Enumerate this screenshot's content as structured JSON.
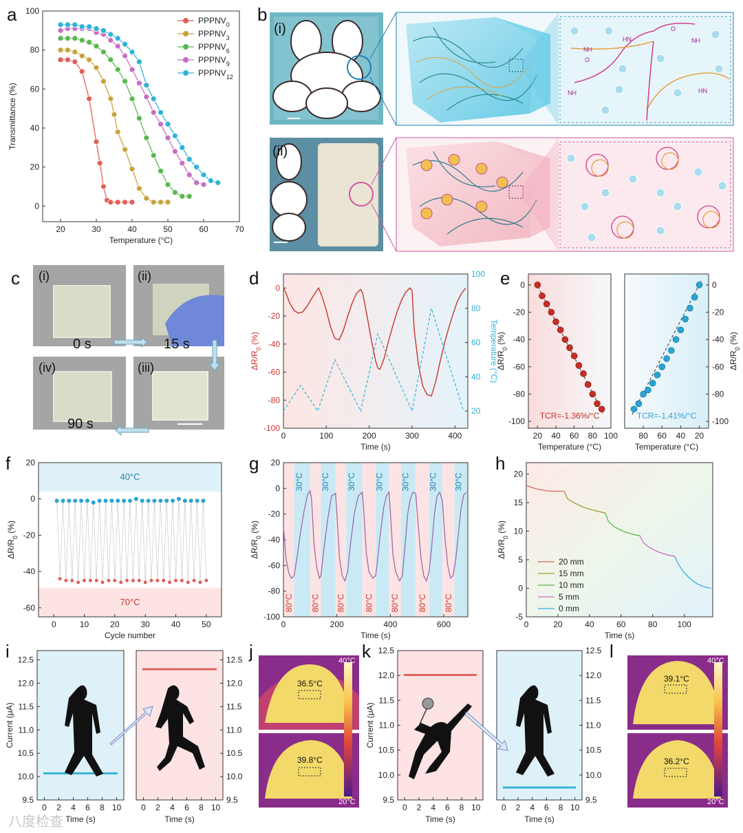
{
  "panel_labels": {
    "a": "a",
    "b": "b",
    "c": "c",
    "d": "d",
    "e": "e",
    "f": "f",
    "g": "g",
    "h": "h",
    "i": "i",
    "j": "j",
    "k": "k",
    "l": "l"
  },
  "colors": {
    "red": "#e0605a",
    "olive": "#c9a33a",
    "green": "#58b84f",
    "purple": "#c66fc3",
    "cyan": "#2fb2d8",
    "darkred": "#c8342c",
    "pinkbg": "#fde3e3",
    "bluebg": "#dff1f8"
  },
  "panel_b": {
    "label_i": "(i)",
    "label_ii": "(ii)",
    "hbond_nh": "NH",
    "hbond_hn": "HN",
    "hbond_o": "O"
  },
  "panel_c": {
    "labels": [
      "(i)",
      "(ii)",
      "(iii)",
      "(iv)"
    ],
    "times": [
      "0 s",
      "15 s",
      "90 s"
    ]
  },
  "panel_j": {
    "t1": "36.5°C",
    "t2": "39.8°C",
    "max": "40°C",
    "min": "20°C"
  },
  "panel_l": {
    "t1": "39.1°C",
    "t2": "36.2°C",
    "max": "40°C",
    "min": "20°C"
  },
  "watermark": "八度检查",
  "chart_data": [
    {
      "id": "a",
      "type": "line",
      "xlabel": "Temperature (°C)",
      "ylabel": "Transmittance (%)",
      "xlim": [
        15,
        70
      ],
      "ylim": [
        -8,
        100
      ],
      "xticks": [
        20,
        30,
        40,
        50,
        60,
        70
      ],
      "yticks": [
        0,
        20,
        40,
        60,
        80,
        100
      ],
      "legend_position": "top-right",
      "series": [
        {
          "name": "PPPNV",
          "sub": "0",
          "color": "#e0605a",
          "x": [
            20,
            22,
            24,
            26,
            28,
            30,
            31,
            32,
            33,
            34,
            36,
            38,
            40
          ],
          "y": [
            75,
            75,
            74,
            69,
            55,
            33,
            22,
            10,
            3,
            2,
            2,
            2,
            2
          ]
        },
        {
          "name": "PPPNV",
          "sub": "3",
          "color": "#c9a33a",
          "x": [
            20,
            22,
            24,
            26,
            28,
            30,
            32,
            34,
            35,
            36,
            38,
            40,
            42,
            44,
            46,
            48,
            50
          ],
          "y": [
            80,
            80,
            79,
            77,
            75,
            71,
            64,
            55,
            47,
            38,
            29,
            19,
            9,
            4,
            2,
            2,
            2
          ]
        },
        {
          "name": "PPPNV",
          "sub": "6",
          "color": "#58b84f",
          "x": [
            20,
            22,
            24,
            26,
            28,
            30,
            32,
            34,
            36,
            38,
            40,
            42,
            44,
            46,
            48,
            50,
            52,
            54,
            56
          ],
          "y": [
            86,
            86,
            86,
            85,
            84,
            82,
            79,
            75,
            70,
            64,
            55,
            45,
            35,
            26,
            18,
            11,
            7,
            5,
            5
          ]
        },
        {
          "name": "PPPNV",
          "sub": "9",
          "color": "#c66fc3",
          "x": [
            20,
            22,
            24,
            26,
            28,
            30,
            32,
            34,
            36,
            38,
            40,
            42,
            44,
            46,
            48,
            50,
            52,
            54,
            56,
            58,
            60
          ],
          "y": [
            90,
            91,
            91,
            91,
            91,
            89,
            88,
            85,
            82,
            77,
            70,
            63,
            56,
            48,
            42,
            35,
            28,
            22,
            16,
            12,
            11
          ]
        },
        {
          "name": "PPPNV",
          "sub": "12",
          "color": "#2fb2d8",
          "x": [
            20,
            22,
            24,
            26,
            28,
            30,
            32,
            34,
            36,
            38,
            40,
            42,
            44,
            46,
            48,
            50,
            52,
            54,
            56,
            58,
            60,
            62,
            64
          ],
          "y": [
            93,
            93,
            93,
            92,
            92,
            91,
            90,
            88,
            86,
            83,
            79,
            74,
            62,
            55,
            48,
            42,
            36,
            30,
            24,
            20,
            16,
            13,
            12
          ]
        }
      ]
    },
    {
      "id": "d",
      "type": "line",
      "xlabel": "Time (s)",
      "ylabel": "ΔR/R",
      "ylabel_sub": "0",
      "ylabel_unit": " (%)",
      "y2label": "Temperature (°C)",
      "xlim": [
        0,
        430
      ],
      "ylim": [
        -100,
        10
      ],
      "y2lim": [
        10,
        100
      ],
      "xticks": [
        0,
        100,
        200,
        300,
        400
      ],
      "yticks": [
        -100,
        -80,
        -60,
        -40,
        -20,
        0
      ],
      "y2ticks": [
        20,
        40,
        60,
        80,
        100
      ],
      "series": [
        {
          "name": "resistance",
          "axis": "y",
          "color": "#c8342c",
          "x": [
            0,
            5,
            15,
            25,
            35,
            45,
            55,
            65,
            75,
            82,
            90,
            100,
            110,
            120,
            130,
            140,
            150,
            160,
            170,
            180,
            185,
            195,
            205,
            215,
            220,
            225,
            235,
            245,
            255,
            265,
            275,
            285,
            295,
            300,
            305,
            315,
            325,
            335,
            345,
            355,
            365,
            375,
            385,
            395,
            405,
            415,
            425
          ],
          "y": [
            0,
            -3,
            -11,
            -16,
            -18,
            -17,
            -13,
            -8,
            -3,
            0,
            -6,
            -16,
            -28,
            -36,
            -37,
            -30,
            -20,
            -11,
            -4,
            -1,
            -4,
            -20,
            -37,
            -52,
            -57,
            -58,
            -50,
            -38,
            -27,
            -17,
            -9,
            -3,
            0,
            -2,
            -30,
            -55,
            -70,
            -76,
            -77,
            -67,
            -53,
            -40,
            -29,
            -19,
            -10,
            -4,
            0
          ]
        },
        {
          "name": "temperature",
          "axis": "y2",
          "color": "#2fb2d8",
          "dashed": true,
          "x": [
            0,
            40,
            80,
            120,
            180,
            220,
            300,
            345,
            420
          ],
          "y": [
            20,
            35,
            20,
            50,
            20,
            65,
            20,
            80,
            20
          ]
        }
      ]
    },
    {
      "id": "e1",
      "type": "scatter",
      "xlabel": "Temperature (°C)",
      "ylabel": "ΔR/R",
      "ylabel_sub": "0",
      "ylabel_unit": " (%)",
      "annotation": "TCR=-1.36%/°C",
      "xlim": [
        10,
        100
      ],
      "ylim": [
        -105,
        8
      ],
      "xticks": [
        20,
        40,
        60,
        80,
        100
      ],
      "yticks": [
        -100,
        -80,
        -60,
        -40,
        -20,
        0
      ],
      "x": [
        20,
        25,
        30,
        35,
        40,
        45,
        50,
        55,
        60,
        65,
        70,
        75,
        80,
        85,
        90
      ],
      "y": [
        0,
        -8,
        -14,
        -20,
        -27,
        -33,
        -40,
        -46,
        -52,
        -59,
        -65,
        -73,
        -80,
        -87,
        -91
      ]
    },
    {
      "id": "e2",
      "type": "scatter",
      "xlabel": "Temperature (°C)",
      "ylabel": "ΔR/R",
      "ylabel_sub": "0",
      "ylabel_unit": " (%)",
      "annotation": "TCR=-1.41%/°C",
      "xlim": [
        100,
        10
      ],
      "ylim": [
        -105,
        8
      ],
      "xticks": [
        80,
        60,
        40,
        20
      ],
      "yticks": [
        -100,
        -80,
        -60,
        -40,
        -20,
        0
      ],
      "x": [
        90,
        85,
        80,
        75,
        70,
        65,
        60,
        55,
        50,
        45,
        40,
        35,
        30,
        25,
        20
      ],
      "y": [
        -91,
        -87,
        -80,
        -77,
        -72,
        -66,
        -60,
        -54,
        -48,
        -40,
        -33,
        -25,
        -17,
        -9,
        0
      ]
    },
    {
      "id": "f",
      "type": "scatter",
      "xlabel": "Cycle number",
      "ylabel": "ΔR/R",
      "ylabel_sub": "0",
      "ylabel_unit": " (%)",
      "band_top": "40°C",
      "band_bottom": "70°C",
      "xlim": [
        -5,
        55
      ],
      "ylim": [
        -65,
        20
      ],
      "xticks": [
        0,
        10,
        20,
        30,
        40,
        50
      ],
      "yticks": [
        -60,
        -40,
        -20,
        0,
        20
      ],
      "high_x": [
        1,
        3,
        5,
        7,
        9,
        11,
        13,
        15,
        17,
        19,
        21,
        23,
        25,
        27,
        29,
        31,
        33,
        35,
        37,
        39,
        41,
        43,
        45,
        47,
        49
      ],
      "high_y": [
        -1,
        -1,
        -1,
        -1,
        -1,
        -1,
        -2,
        -1,
        -1,
        -1,
        -1,
        -1,
        -1,
        0,
        -1,
        -1,
        -1,
        -1,
        -1,
        -1,
        0,
        -1,
        -1,
        -1,
        -1
      ],
      "low_x": [
        2,
        4,
        6,
        8,
        10,
        12,
        14,
        16,
        18,
        20,
        22,
        24,
        26,
        28,
        30,
        32,
        34,
        36,
        38,
        40,
        42,
        44,
        46,
        48,
        50
      ],
      "low_y": [
        -44,
        -45,
        -45,
        -46,
        -45,
        -45,
        -45,
        -46,
        -45,
        -45,
        -46,
        -45,
        -45,
        -45,
        -46,
        -45,
        -45,
        -45,
        -46,
        -45,
        -45,
        -46,
        -45,
        -46,
        -45
      ]
    },
    {
      "id": "g",
      "type": "line",
      "xlabel": "Time (s)",
      "ylabel": "ΔR/R",
      "ylabel_sub": "0",
      "ylabel_unit": " (%)",
      "band_low": "30°C",
      "band_high": "80°C",
      "xlim": [
        0,
        690
      ],
      "ylim": [
        -100,
        20
      ],
      "xticks": [
        0,
        200,
        400,
        600
      ],
      "yticks": [
        -100,
        -80,
        -60,
        -40,
        -20,
        0,
        20
      ],
      "bands": [
        [
          0,
          40,
          "r"
        ],
        [
          40,
          100,
          "b"
        ],
        [
          100,
          140,
          "r"
        ],
        [
          140,
          195,
          "b"
        ],
        [
          195,
          235,
          "r"
        ],
        [
          235,
          295,
          "b"
        ],
        [
          295,
          345,
          "r"
        ],
        [
          345,
          395,
          "b"
        ],
        [
          395,
          440,
          "r"
        ],
        [
          440,
          495,
          "b"
        ],
        [
          495,
          545,
          "r"
        ],
        [
          545,
          595,
          "b"
        ],
        [
          595,
          640,
          "r"
        ],
        [
          640,
          690,
          "b"
        ]
      ],
      "x": [
        0,
        10,
        20,
        30,
        40,
        50,
        60,
        75,
        90,
        100,
        105,
        115,
        125,
        135,
        140,
        150,
        165,
        180,
        195,
        200,
        210,
        220,
        230,
        240,
        250,
        265,
        280,
        295,
        300,
        310,
        320,
        335,
        345,
        350,
        360,
        375,
        385,
        395,
        400,
        410,
        420,
        435,
        445,
        455,
        465,
        475,
        485,
        495,
        505,
        515,
        525,
        535,
        545,
        555,
        565,
        575,
        585,
        595,
        605,
        615,
        625,
        635,
        645,
        655,
        665,
        675,
        685
      ],
      "y": [
        -30,
        -55,
        -66,
        -70,
        -68,
        -55,
        -40,
        -20,
        -5,
        -2,
        -8,
        -45,
        -62,
        -70,
        -68,
        -50,
        -25,
        -6,
        -4,
        -20,
        -55,
        -68,
        -72,
        -65,
        -45,
        -20,
        -6,
        -3,
        -15,
        -50,
        -65,
        -70,
        -68,
        -60,
        -40,
        -15,
        -6,
        -3,
        -18,
        -52,
        -65,
        -72,
        -68,
        -45,
        -20,
        -8,
        -3,
        -4,
        -30,
        -55,
        -68,
        -72,
        -65,
        -45,
        -20,
        -6,
        -3,
        -10,
        -40,
        -60,
        -70,
        -68,
        -55,
        -35,
        -15,
        -5,
        -3
      ]
    },
    {
      "id": "h",
      "type": "line",
      "xlabel": "Time (s)",
      "ylabel": "ΔR/R",
      "ylabel_sub": "0",
      "ylabel_unit": " (%)",
      "xlim": [
        0,
        118
      ],
      "ylim": [
        -5,
        22
      ],
      "xticks": [
        0,
        20,
        40,
        60,
        80,
        100
      ],
      "yticks": [
        -5,
        0,
        5,
        10,
        15,
        20
      ],
      "legend_position": "bottom-left",
      "series": [
        {
          "name": "20 mm",
          "color": "#e0605a",
          "x": [
            0,
            4,
            8,
            12,
            16,
            20,
            24
          ],
          "y": [
            18,
            17.6,
            17.3,
            17.1,
            17,
            17,
            17
          ]
        },
        {
          "name": "15 mm",
          "color": "#9f9b2a",
          "x": [
            24,
            26,
            30,
            36,
            42,
            48,
            50
          ],
          "y": [
            17,
            15.7,
            15,
            14.2,
            13.7,
            13.3,
            13.2
          ]
        },
        {
          "name": "10 mm",
          "color": "#58b84f",
          "x": [
            50,
            52,
            56,
            62,
            68,
            72
          ],
          "y": [
            13.2,
            11.7,
            10.7,
            9.9,
            9.4,
            9.2
          ]
        },
        {
          "name": "5 mm",
          "color": "#c66fc3",
          "x": [
            72,
            74,
            78,
            84,
            90,
            94
          ],
          "y": [
            9.2,
            8,
            7.1,
            6.3,
            5.8,
            5.6
          ]
        },
        {
          "name": "0 mm",
          "color": "#2fb2d8",
          "x": [
            94,
            96,
            100,
            104,
            108,
            112,
            117
          ],
          "y": [
            5.6,
            4.3,
            2.7,
            1.6,
            0.8,
            0.3,
            0
          ]
        }
      ]
    },
    {
      "id": "i",
      "type": "scatter",
      "xlabel": "Time (s)",
      "ylabel": "Current (μA)",
      "xlim": [
        -1,
        11
      ],
      "ylim": [
        9.5,
        12.7
      ],
      "xticks": [
        0,
        2,
        4,
        6,
        8,
        10
      ],
      "yticks": [
        9.5,
        10.0,
        10.5,
        11.0,
        11.5,
        12.0,
        12.5
      ],
      "left_value": 10.07,
      "right_value": 12.3
    },
    {
      "id": "k",
      "type": "scatter",
      "xlabel": "Time (s)",
      "ylabel": "Current (μA)",
      "xlim": [
        -1,
        11
      ],
      "ylim": [
        9.5,
        12.5
      ],
      "xticks": [
        0,
        2,
        4,
        6,
        8,
        10
      ],
      "yticks": [
        9.5,
        10.0,
        10.5,
        11.0,
        11.5,
        12.0,
        12.5
      ],
      "left_value": 12.01,
      "right_value": 9.75
    }
  ]
}
